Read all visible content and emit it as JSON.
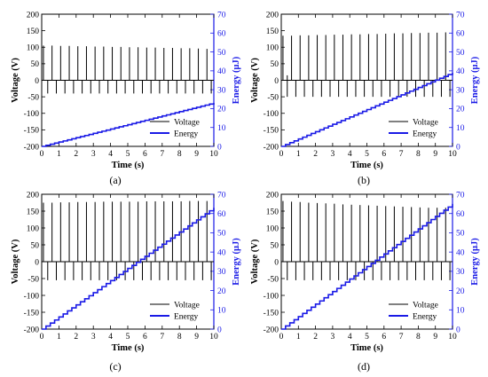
{
  "colors": {
    "voltage": "#000000",
    "energy": "#1a1ae6",
    "axis_left": "#000000",
    "axis_right": "#1a1ae6"
  },
  "panel_labels": [
    "(a)",
    "(b)",
    "(c)",
    "(d)"
  ],
  "chart_data": [
    {
      "type": "line",
      "panel": "a",
      "xlabel": "Time (s)",
      "ylabel": "Voltage (V)",
      "y2label": "Energy (μJ)",
      "xlim": [
        0,
        10
      ],
      "ylim": [
        -200,
        200
      ],
      "y2lim": [
        0,
        70
      ],
      "xticks": [
        0,
        1,
        2,
        3,
        4,
        5,
        6,
        7,
        8,
        9,
        10
      ],
      "yticks": [
        -200,
        -150,
        -100,
        -50,
        0,
        50,
        100,
        150,
        200
      ],
      "y2ticks": [
        0,
        10,
        20,
        30,
        40,
        50,
        60,
        70
      ],
      "legend": [
        "Voltage",
        "Energy"
      ],
      "legend_position": "lower-right",
      "grid": false,
      "series": [
        {
          "name": "Voltage",
          "axis": "left",
          "style": "pulses",
          "pulse_times": [
            0.1,
            0.6,
            1.1,
            1.6,
            2.1,
            2.6,
            3.1,
            3.6,
            4.1,
            4.6,
            5.1,
            5.6,
            6.1,
            6.6,
            7.1,
            7.6,
            8.1,
            8.6,
            9.1,
            9.6
          ],
          "pos_peak": [
            105,
            105,
            104,
            104,
            103,
            103,
            102,
            102,
            101,
            101,
            100,
            100,
            99,
            99,
            98,
            98,
            97,
            97,
            96,
            95
          ],
          "neg_peak": -40
        },
        {
          "name": "Energy",
          "axis": "right",
          "style": "step",
          "start": 0,
          "end": 23,
          "steps": 40
        }
      ]
    },
    {
      "type": "line",
      "panel": "b",
      "xlabel": "Time (s)",
      "ylabel": "Voltage (V)",
      "y2label": "Energy (μJ)",
      "xlim": [
        0,
        10
      ],
      "ylim": [
        -200,
        200
      ],
      "y2lim": [
        0,
        70
      ],
      "xticks": [
        0,
        1,
        2,
        3,
        4,
        5,
        6,
        7,
        8,
        9,
        10
      ],
      "yticks": [
        -200,
        -150,
        -100,
        -50,
        0,
        50,
        100,
        150,
        200
      ],
      "y2ticks": [
        0,
        10,
        20,
        30,
        40,
        50,
        60,
        70
      ],
      "legend": [
        "Voltage",
        "Energy"
      ],
      "legend_position": "lower-right",
      "grid": false,
      "series": [
        {
          "name": "Voltage",
          "axis": "left",
          "style": "pulses",
          "pulse_times": [
            0.1,
            0.6,
            1.1,
            1.6,
            2.1,
            2.6,
            3.1,
            3.6,
            4.1,
            4.6,
            5.1,
            5.6,
            6.1,
            6.6,
            7.1,
            7.6,
            8.1,
            8.6,
            9.1,
            9.6
          ],
          "pos_peak": [
            135,
            135,
            136,
            136,
            137,
            137,
            138,
            138,
            139,
            139,
            140,
            140,
            141,
            142,
            142,
            143,
            143,
            144,
            144,
            145
          ],
          "neg_peak": -50,
          "extra_spike": {
            "t": 0.35,
            "v": 15
          }
        },
        {
          "name": "Energy",
          "axis": "right",
          "style": "step",
          "start": 0,
          "end": 39,
          "steps": 40
        }
      ]
    },
    {
      "type": "line",
      "panel": "c",
      "xlabel": "Time (s)",
      "ylabel": "Voltage (V)",
      "y2label": "Energy (μJ)",
      "xlim": [
        0,
        10
      ],
      "ylim": [
        -200,
        200
      ],
      "y2lim": [
        0,
        70
      ],
      "xticks": [
        0,
        1,
        2,
        3,
        4,
        5,
        6,
        7,
        8,
        9,
        10
      ],
      "yticks": [
        -200,
        -150,
        -100,
        -50,
        0,
        50,
        100,
        150,
        200
      ],
      "y2ticks": [
        0,
        10,
        20,
        30,
        40,
        50,
        60,
        70
      ],
      "legend": [
        "Voltage",
        "Energy"
      ],
      "legend_position": "lower-right",
      "grid": false,
      "series": [
        {
          "name": "Voltage",
          "axis": "left",
          "style": "pulses",
          "pulse_times": [
            0.1,
            0.6,
            1.1,
            1.6,
            2.1,
            2.6,
            3.1,
            3.6,
            4.1,
            4.6,
            5.1,
            5.6,
            6.1,
            6.6,
            7.1,
            7.6,
            8.1,
            8.6,
            9.1,
            9.6
          ],
          "pos_peak": [
            175,
            175,
            176,
            176,
            177,
            177,
            177,
            178,
            178,
            178,
            178,
            178,
            179,
            179,
            179,
            179,
            179,
            180,
            180,
            180
          ],
          "neg_peak": -55
        },
        {
          "name": "Energy",
          "axis": "right",
          "style": "step",
          "start": 0,
          "end": 63,
          "steps": 40
        }
      ]
    },
    {
      "type": "line",
      "panel": "d",
      "xlabel": "Time (s)",
      "ylabel": "Voltage (V)",
      "y2label": "Energy (μJ)",
      "xlim": [
        0,
        10
      ],
      "ylim": [
        -200,
        200
      ],
      "y2lim": [
        0,
        70
      ],
      "xticks": [
        0,
        1,
        2,
        3,
        4,
        5,
        6,
        7,
        8,
        9,
        10
      ],
      "yticks": [
        -200,
        -150,
        -100,
        -50,
        0,
        50,
        100,
        150,
        200
      ],
      "y2ticks": [
        0,
        10,
        20,
        30,
        40,
        50,
        60,
        70
      ],
      "legend": [
        "Voltage",
        "Energy"
      ],
      "legend_position": "lower-right",
      "grid": false,
      "series": [
        {
          "name": "Voltage",
          "axis": "left",
          "style": "pulses",
          "pulse_times": [
            0.1,
            0.6,
            1.1,
            1.6,
            2.1,
            2.6,
            3.1,
            3.6,
            4.1,
            4.6,
            5.1,
            5.6,
            6.1,
            6.6,
            7.1,
            7.6,
            8.1,
            8.6,
            9.1,
            9.6
          ],
          "pos_peak": [
            180,
            178,
            177,
            175,
            174,
            173,
            172,
            170,
            169,
            168,
            167,
            166,
            165,
            164,
            163,
            162,
            161,
            160,
            160,
            160
          ],
          "neg_peak": -55
        },
        {
          "name": "Energy",
          "axis": "right",
          "style": "step",
          "start": 0,
          "end": 65,
          "steps": 40
        }
      ]
    }
  ]
}
